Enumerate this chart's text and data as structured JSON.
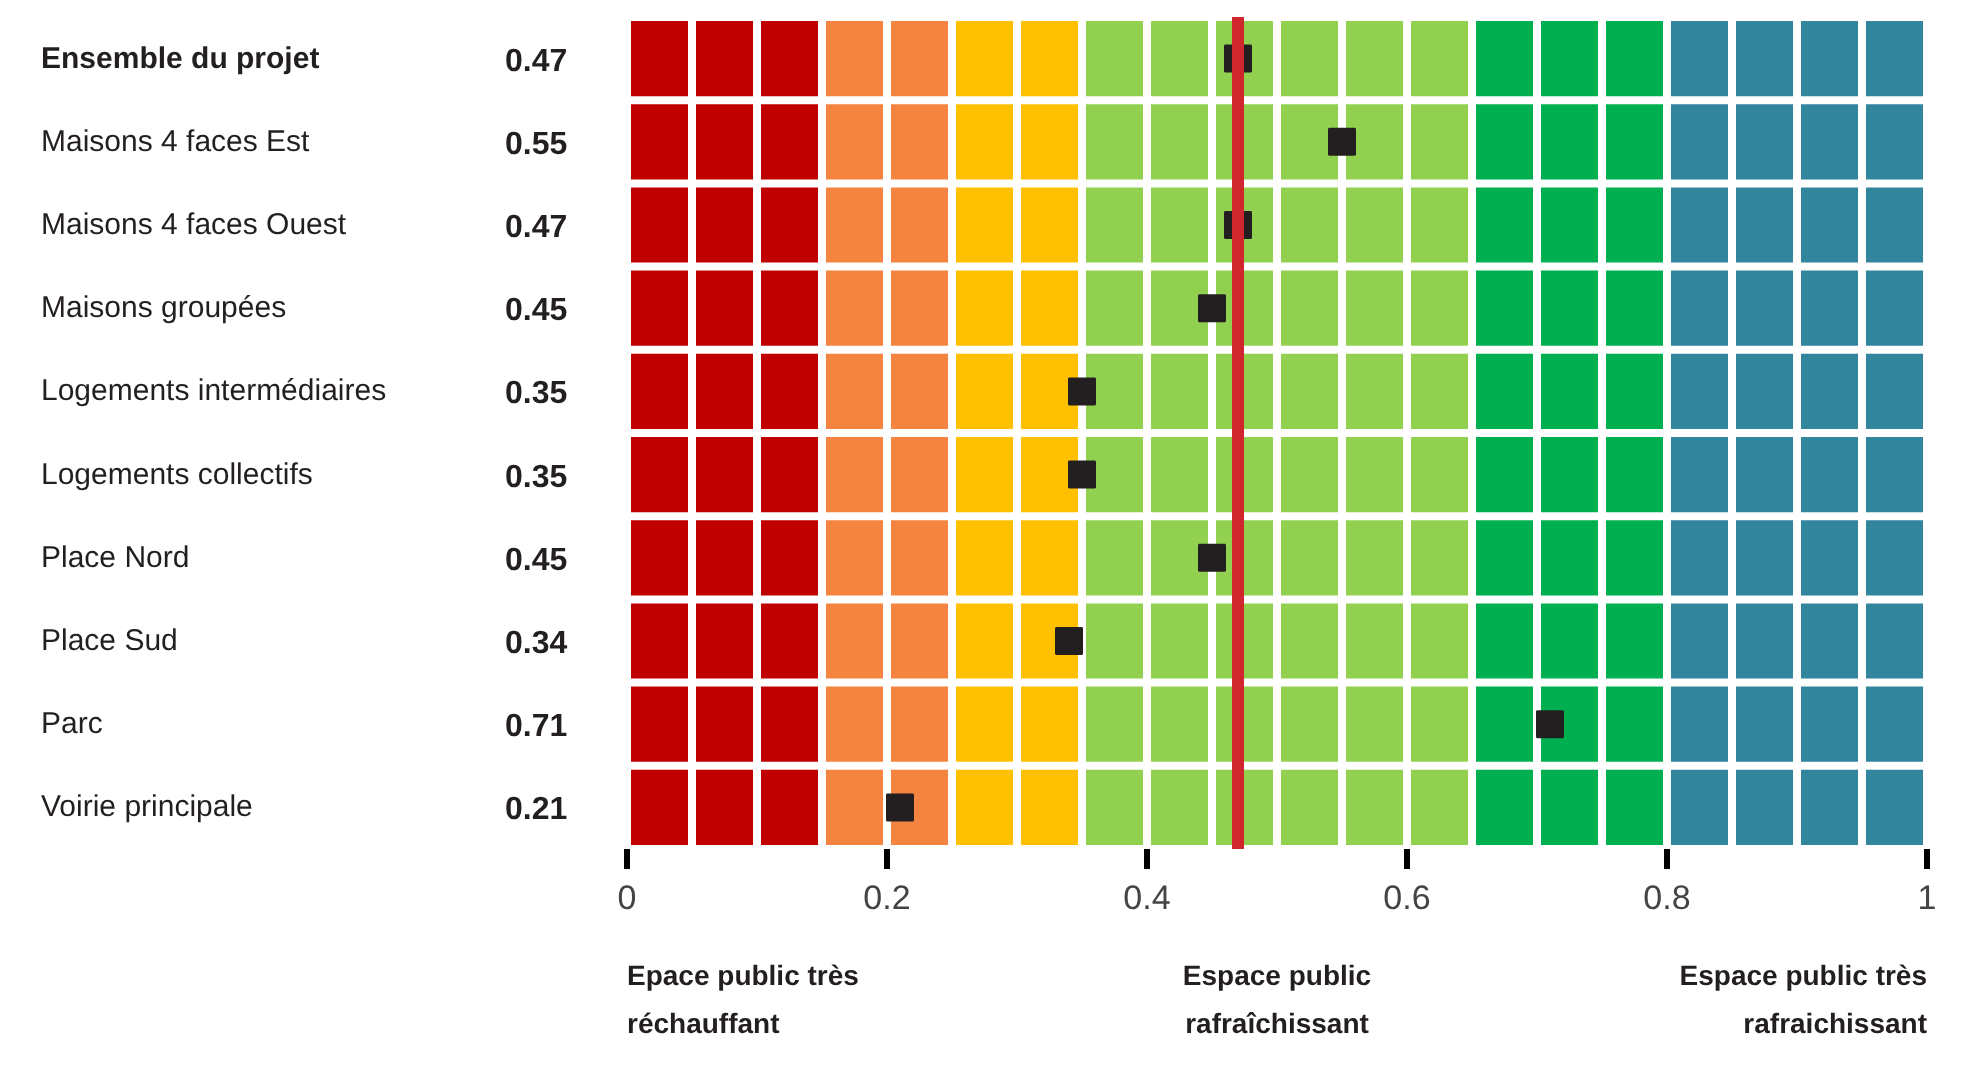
{
  "chart_data": {
    "type": "scatter",
    "grid": true,
    "orientation": "horizontal",
    "marker": "square",
    "color": "#231f20",
    "data_labels": true,
    "categories": [
      "Ensemble du projet",
      "Maisons 4 faces Est",
      "Maisons 4 faces Ouest",
      "Maisons groupées",
      "Logements intermédiaires",
      "Logements collectifs",
      "Place Nord",
      "Place Sud",
      "Parc",
      "Voirie principale"
    ],
    "values": [
      0.47,
      0.55,
      0.47,
      0.45,
      0.35,
      0.35,
      0.45,
      0.34,
      0.71,
      0.21
    ],
    "xlim": [
      0,
      1
    ],
    "xticks": [
      0,
      0.2,
      0.4,
      0.6,
      0.8,
      1
    ],
    "bands": [
      {
        "axis": "x",
        "from": 0,
        "to": 0.15,
        "color": "#c00000"
      },
      {
        "axis": "x",
        "from": 0.15,
        "to": 0.25,
        "color": "#f4843f"
      },
      {
        "axis": "x",
        "from": 0.25,
        "to": 0.35,
        "color": "#ffc000"
      },
      {
        "axis": "x",
        "from": 0.35,
        "to": 0.65,
        "color": "#92d050"
      },
      {
        "axis": "x",
        "from": 0.65,
        "to": 0.8,
        "color": "#00b050"
      },
      {
        "axis": "x",
        "from": 0.8,
        "to": 1,
        "color": "#31859c"
      }
    ],
    "ref_lines": [
      {
        "axis": "x",
        "value": 0.47,
        "color": "#d0262d"
      }
    ],
    "annotations": [
      "Epace public très réchauffant",
      "Espace public rafraîchissant",
      "Espace public très rafraichissant"
    ]
  }
}
